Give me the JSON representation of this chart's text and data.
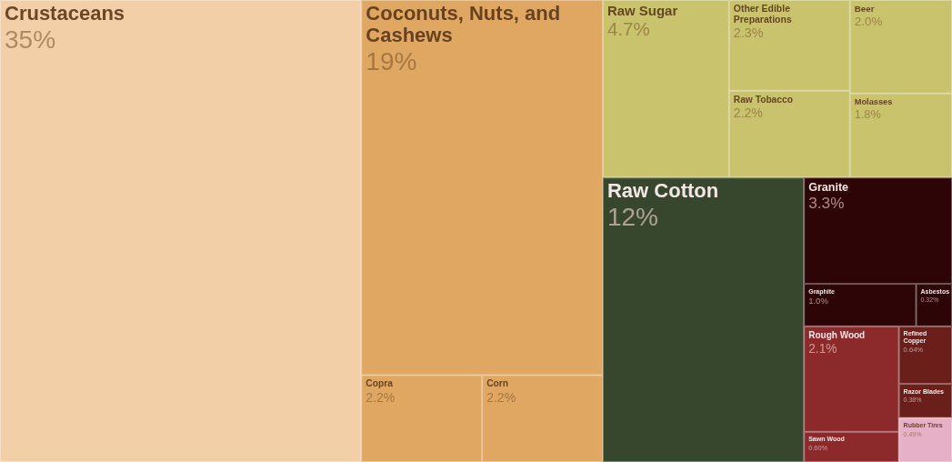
{
  "chart_data": {
    "type": "other",
    "categories": [
      "Crustaceans",
      "Coconuts, Nuts, and Cashews",
      "Copra",
      "Corn",
      "Raw Sugar",
      "Other Edible Preparations",
      "Raw Tobacco",
      "Beer",
      "Molasses",
      "Raw Cotton",
      "Granite",
      "Graphite",
      "Asbestos",
      "Rough Wood",
      "Sawn Wood",
      "Refined Copper",
      "Razor Blades",
      "Rubber Tires"
    ],
    "values": [
      35,
      19,
      2.2,
      2.2,
      4.7,
      2.3,
      2.2,
      2.0,
      1.8,
      12,
      3.3,
      1.0,
      0.32,
      2.1,
      0.6,
      0.64,
      0.38,
      0.49
    ],
    "value_labels": [
      "35%",
      "19%",
      "2.2%",
      "2.2%",
      "4.7%",
      "2.3%",
      "2.2%",
      "2.0%",
      "1.8%",
      "12%",
      "3.3%",
      "1.0%",
      "0.32%",
      "2.1%",
      "0.60%",
      "0.64%",
      "0.38%",
      "0.49%"
    ],
    "colors": [
      "#f2cfa7",
      "#dfa762",
      "#dfa762",
      "#dfa762",
      "#c9c36e",
      "#c9c36e",
      "#c9c36e",
      "#c9c36e",
      "#c9c36e",
      "#37472d",
      "#2e0507",
      "#2e0507",
      "#2e0507",
      "#8c2a2b",
      "#8c2a2b",
      "#6a1f1b",
      "#6a1f1b",
      "#e6b0c6"
    ]
  }
}
